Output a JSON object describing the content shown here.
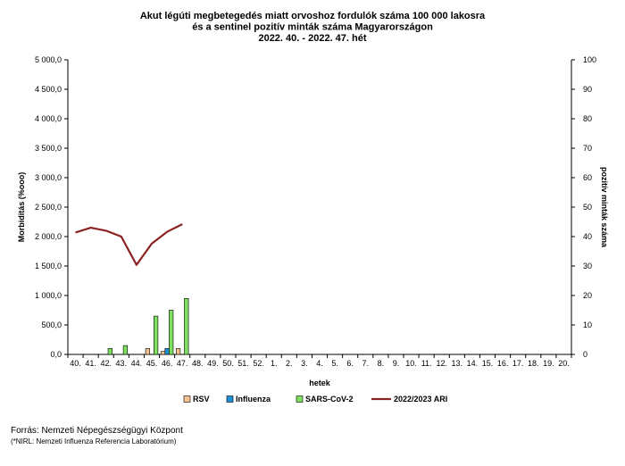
{
  "chart_data": {
    "type": "bar",
    "title_lines": [
      "Akut légúti megbetegedés miatt orvoshoz fordulók száma 100 000 lakosra",
      "és a sentinel pozitív minták száma Magyarországon",
      "2022. 40. - 2022. 47. hét"
    ],
    "xlabel": "hetek",
    "ylabel_left": "Morbiditás (%ooo)",
    "ylabel_right": "pozitív minták száma",
    "categories": [
      "40.",
      "41.",
      "42.",
      "43.",
      "44.",
      "45.",
      "46.",
      "47.",
      "48.",
      "49.",
      "50.",
      "51.",
      "52.",
      "1.",
      "2.",
      "3.",
      "4.",
      "5.",
      "6.",
      "7.",
      "8.",
      "9.",
      "10.",
      "11.",
      "12.",
      "13.",
      "14.",
      "15.",
      "16.",
      "17.",
      "18.",
      "19.",
      "20."
    ],
    "ylim_left": [
      0,
      5000
    ],
    "ylim_right": [
      0,
      100
    ],
    "yticks_left": [
      "0,0",
      "500,0",
      "1 000,0",
      "1 500,0",
      "2 000,0",
      "2 500,0",
      "3 000,0",
      "3 500,0",
      "4 000,0",
      "4 500,0",
      "5 000,0"
    ],
    "yticks_right": [
      "0",
      "10",
      "20",
      "30",
      "40",
      "50",
      "60",
      "70",
      "80",
      "90",
      "100"
    ],
    "bar_series": [
      {
        "name": "RSV",
        "color": "#f5c391",
        "values": [
          0,
          0,
          0,
          0,
          0,
          2,
          1,
          2,
          null,
          null,
          null,
          null,
          null,
          null,
          null,
          null,
          null,
          null,
          null,
          null,
          null,
          null,
          null,
          null,
          null,
          null,
          null,
          null,
          null,
          null,
          null,
          null,
          null
        ]
      },
      {
        "name": "Influenza",
        "color": "#1f8fd6",
        "values": [
          0,
          0,
          0,
          0,
          0,
          0,
          2,
          0,
          null,
          null,
          null,
          null,
          null,
          null,
          null,
          null,
          null,
          null,
          null,
          null,
          null,
          null,
          null,
          null,
          null,
          null,
          null,
          null,
          null,
          null,
          null,
          null,
          null
        ]
      },
      {
        "name": "SARS-CoV-2",
        "color": "#7ee060",
        "values": [
          0,
          0,
          2,
          3,
          0,
          13,
          15,
          19,
          null,
          null,
          null,
          null,
          null,
          null,
          null,
          null,
          null,
          null,
          null,
          null,
          null,
          null,
          null,
          null,
          null,
          null,
          null,
          null,
          null,
          null,
          null,
          null,
          null
        ]
      }
    ],
    "line_series": [
      {
        "name": "2022/2023 ARI",
        "color": "#8b2323",
        "values": [
          2070,
          2150,
          2100,
          2000,
          1520,
          1880,
          2080,
          2210,
          null,
          null,
          null,
          null,
          null,
          null,
          null,
          null,
          null,
          null,
          null,
          null,
          null,
          null,
          null,
          null,
          null,
          null,
          null,
          null,
          null,
          null,
          null,
          null,
          null
        ]
      }
    ],
    "legend_position": "bottom",
    "grid": false
  },
  "source": {
    "line1": "Forrás: Nemzeti Népegészségügyi Központ",
    "line2": "(*NIRL: Nemzeti Influenza Referencia Laboratórium)"
  }
}
